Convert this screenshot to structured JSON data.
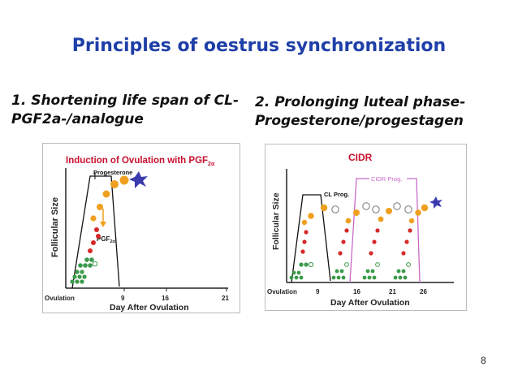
{
  "slide": {
    "title": "Principles of oestrus synchronization",
    "page_number": "8"
  },
  "point1": {
    "line1": "1. Shortening life span of CL-",
    "line2": "PGF2a-/analogue"
  },
  "point2": {
    "line1": "2. Prolonging luteal phase-",
    "line2": "Progesterone/progestagen"
  },
  "figure1": {
    "title": "Induction of Ovulation with PGF",
    "title_sub": "2α",
    "progesterone_label": "Progesterone",
    "pgf_label": "PGF",
    "pgf_sub": "2α",
    "ylabel": "Follicular Size",
    "xlabel": "Day After Ovulation",
    "ticks": [
      "Ovulation",
      "9",
      "16",
      "21"
    ],
    "title_color": "#c8102e"
  },
  "figure2": {
    "title": "CIDR",
    "cidr_prog_label": "CIDR Prog.",
    "cl_prog_label": "CL Prog.",
    "ylabel": "Follicular Size",
    "xlabel": "Day After Ovulation",
    "ticks": [
      "Ovulation",
      "9",
      "16",
      "21",
      "26"
    ],
    "title_color": "#c8102e",
    "cidr_line_color": "#c86ac8"
  },
  "colors": {
    "title": "#1f3fa8",
    "green_follicle": "#3a9a4a",
    "red_follicle": "#d62828",
    "orange_follicle": "#f0a020",
    "star": "#3b3bb0"
  }
}
